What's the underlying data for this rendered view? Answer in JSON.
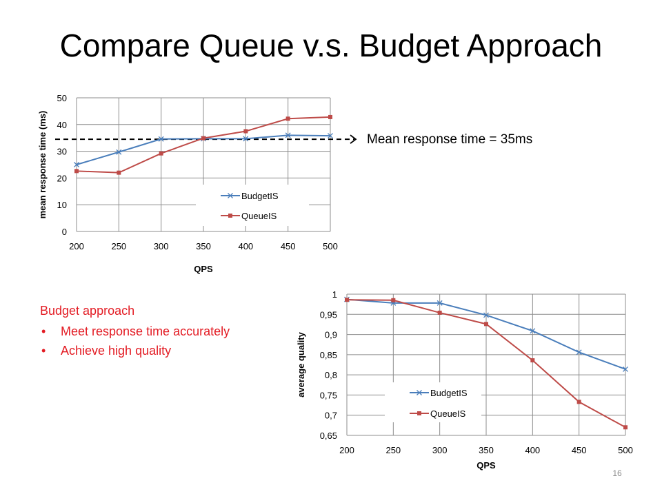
{
  "slide": {
    "title": "Compare Queue v.s. Budget Approach",
    "annotation": "Mean response time = 35ms",
    "slide_number": "16"
  },
  "bullets": {
    "heading": "Budget approach",
    "items": [
      "Meet response time accurately",
      "Achieve high quality"
    ],
    "color": "#e31b23"
  },
  "chart_data": [
    {
      "type": "line",
      "title": "",
      "xlabel": "QPS",
      "ylabel": "mean response time (ms)",
      "x": [
        200,
        250,
        300,
        350,
        400,
        450,
        500
      ],
      "x_ticks": [
        "200",
        "250",
        "300",
        "350",
        "400",
        "450",
        "500"
      ],
      "y_ticks": [
        "0",
        "10",
        "20",
        "30",
        "40",
        "50"
      ],
      "ylim": [
        0,
        50
      ],
      "grid": true,
      "legend": "center-right",
      "reference_line": {
        "y": 34.5,
        "style": "dashed",
        "label": "Mean response time = 35ms"
      },
      "series": [
        {
          "name": "BudgetIS",
          "color": "#4a7ebb",
          "marker": "x",
          "values": [
            25.0,
            29.7,
            34.6,
            34.7,
            34.7,
            36.0,
            35.8
          ]
        },
        {
          "name": "QueueIS",
          "color": "#be4b48",
          "marker": "square",
          "values": [
            22.6,
            22.0,
            29.2,
            34.9,
            37.5,
            42.2,
            42.8
          ]
        }
      ]
    },
    {
      "type": "line",
      "title": "",
      "xlabel": "QPS",
      "ylabel": "average quality",
      "x": [
        200,
        250,
        300,
        350,
        400,
        450,
        500
      ],
      "x_ticks": [
        "200",
        "250",
        "300",
        "350",
        "400",
        "450",
        "500"
      ],
      "y_ticks": [
        "0,65",
        "0,7",
        "0,75",
        "0,8",
        "0,85",
        "0,9",
        "0,95",
        "1"
      ],
      "ylim": [
        0.65,
        1.0
      ],
      "grid": true,
      "legend": "center-left",
      "series": [
        {
          "name": "BudgetIS",
          "color": "#4a7ebb",
          "marker": "x",
          "values": [
            0.987,
            0.978,
            0.978,
            0.948,
            0.909,
            0.856,
            0.814
          ]
        },
        {
          "name": "QueueIS",
          "color": "#be4b48",
          "marker": "square",
          "values": [
            0.986,
            0.985,
            0.954,
            0.926,
            0.836,
            0.733,
            0.67
          ]
        }
      ]
    }
  ]
}
